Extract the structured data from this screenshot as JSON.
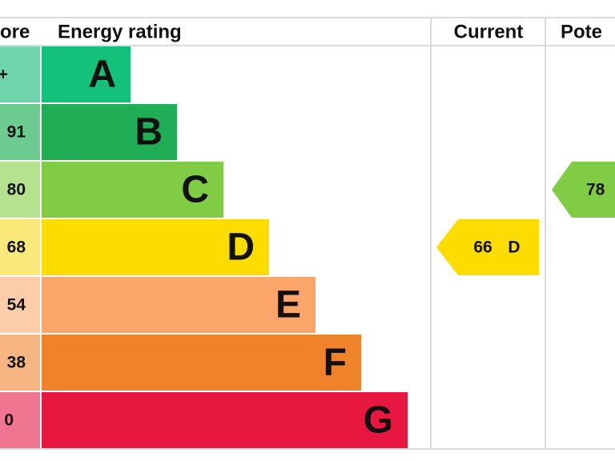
{
  "header": {
    "score": "ore",
    "rating": "Energy rating",
    "current": "Current",
    "potential": "Pote"
  },
  "bands": [
    {
      "score": "+",
      "letter": "A",
      "color": "#14c17a",
      "light": "#6fd3ab"
    },
    {
      "score": "91",
      "letter": "B",
      "color": "#1fad56",
      "light": "#6ccb8f"
    },
    {
      "score": "80",
      "letter": "C",
      "color": "#80cc44",
      "light": "#b5e28f"
    },
    {
      "score": "68",
      "letter": "D",
      "color": "#fddc00",
      "light": "#fde97a"
    },
    {
      "score": "54",
      "letter": "E",
      "color": "#fca56a",
      "light": "#fdcca9"
    },
    {
      "score": "38",
      "letter": "F",
      "color": "#f0832a",
      "light": "#f6b583"
    },
    {
      "score": "0",
      "letter": "G",
      "color": "#e8173f",
      "light": "#f07590"
    }
  ],
  "current": {
    "value": "66",
    "band": "D",
    "color": "#fddc00"
  },
  "potential": {
    "value": "78",
    "color": "#80cc44"
  }
}
